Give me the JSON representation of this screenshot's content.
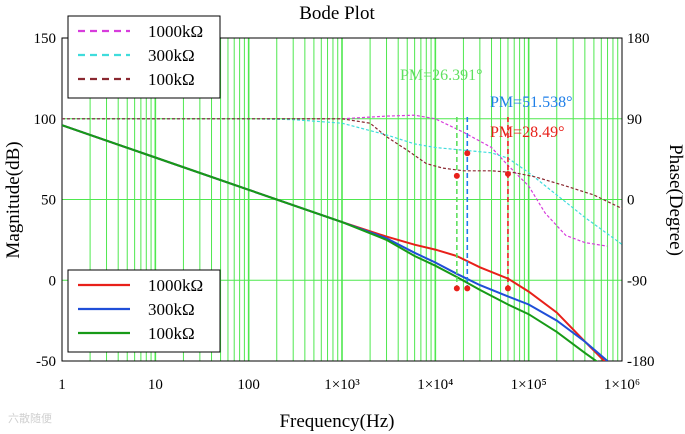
{
  "chart_data": {
    "type": "line",
    "title": "Bode Plot",
    "xlabel": "Frequency(Hz)",
    "ylabel_left": "Magnitude(dB)",
    "ylabel_right": "Phase(Degree)",
    "x_scale": "log",
    "xlim": [
      1,
      1000000
    ],
    "ylim_left": [
      -50,
      150
    ],
    "ylim_right": [
      -180,
      180
    ],
    "x_ticks": [
      {
        "value": 1,
        "label": "1"
      },
      {
        "value": 10,
        "label": "10"
      },
      {
        "value": 100,
        "label": "100"
      },
      {
        "value": 1000,
        "label": "1×10³"
      },
      {
        "value": 10000,
        "label": "1×10⁴"
      },
      {
        "value": 100000,
        "label": "1×10⁵"
      },
      {
        "value": 1000000,
        "label": "1×10⁶"
      }
    ],
    "y_ticks_left": [
      {
        "value": 150,
        "label": "150"
      },
      {
        "value": 100,
        "label": "100"
      },
      {
        "value": 50,
        "label": "50"
      },
      {
        "value": 0,
        "label": "0"
      },
      {
        "value": -50,
        "label": "-50"
      }
    ],
    "y_ticks_right": [
      {
        "value": 180,
        "label": "180"
      },
      {
        "value": 90,
        "label": "90"
      },
      {
        "value": 0,
        "label": "0"
      },
      {
        "value": -90,
        "label": "-90"
      },
      {
        "value": -180,
        "label": "-180"
      }
    ],
    "colors": {
      "grid": "#4fe84f",
      "r1000": "#e8201a",
      "r300": "#1f4ed8",
      "r100": "#179a17",
      "ph1000": "#d73cdc",
      "ph300": "#3fdcdc",
      "ph100": "#8a2830"
    },
    "magnitude_series": [
      {
        "name": "1000kΩ",
        "color": "#e8201a",
        "x": [
          1,
          10,
          100,
          1000,
          3000,
          6000,
          10000,
          17000,
          30000,
          60000,
          100000,
          200000,
          400000,
          700000
        ],
        "y": [
          96,
          76,
          56,
          36,
          27,
          22,
          19,
          15,
          8,
          1,
          -7,
          -20,
          -38,
          -52
        ]
      },
      {
        "name": "300kΩ",
        "color": "#1f4ed8",
        "x": [
          1,
          10,
          100,
          1000,
          3000,
          6000,
          10000,
          17000,
          30000,
          60000,
          100000,
          200000,
          400000,
          700000
        ],
        "y": [
          96,
          76,
          56,
          36,
          26,
          17,
          11,
          4,
          -3,
          -10,
          -15,
          -25,
          -38,
          -50
        ]
      },
      {
        "name": "100kΩ",
        "color": "#179a17",
        "x": [
          1,
          10,
          100,
          1000,
          3000,
          6000,
          10000,
          17000,
          30000,
          60000,
          100000,
          200000,
          400000,
          700000
        ],
        "y": [
          96,
          76,
          56,
          36,
          25,
          15,
          9,
          2,
          -6,
          -15,
          -21,
          -32,
          -45,
          -55
        ]
      }
    ],
    "phase_series": [
      {
        "name": "1000kΩ",
        "color": "#d73cdc",
        "x": [
          1,
          100,
          1000,
          3000,
          6000,
          10000,
          20000,
          40000,
          60000,
          100000,
          150000,
          250000,
          400000,
          700000
        ],
        "y": [
          90,
          90,
          90,
          93,
          94,
          90,
          75,
          58,
          38,
          15,
          -15,
          -40,
          -48,
          -52
        ]
      },
      {
        "name": "300kΩ",
        "color": "#3fdcdc",
        "x": [
          1,
          100,
          300,
          1000,
          3000,
          6000,
          10000,
          20000,
          40000,
          60000,
          100000,
          200000,
          400000,
          1000000
        ],
        "y": [
          90,
          90,
          89,
          85,
          72,
          62,
          58,
          55,
          52,
          46,
          30,
          5,
          -20,
          -50
        ]
      },
      {
        "name": "100kΩ",
        "color": "#8a2830",
        "x": [
          1,
          1000,
          2000,
          3000,
          5000,
          8000,
          12000,
          20000,
          40000,
          70000,
          120000,
          250000,
          500000,
          1000000
        ],
        "y": [
          90,
          90,
          85,
          70,
          55,
          40,
          35,
          32,
          32,
          30,
          25,
          15,
          5,
          -10
        ]
      }
    ],
    "annotations": [
      {
        "text": "PM=26.391°",
        "color": "#5fe05f",
        "freq": 17000,
        "phase_marker": 26.391,
        "mag_marker": -5
      },
      {
        "text": "PM=51.538°",
        "color": "#1f7fe8",
        "freq": 22000,
        "phase_marker": 51.538,
        "mag_marker": -5
      },
      {
        "text": "PM=28.49°",
        "color": "#e8201a",
        "freq": 60000,
        "phase_marker": 28.49,
        "mag_marker": -5
      }
    ],
    "legends": [
      {
        "position": "top-left",
        "entries": [
          {
            "label": "1000kΩ",
            "color": "#d73cdc"
          },
          {
            "label": "300kΩ",
            "color": "#3fdcdc"
          },
          {
            "label": "100kΩ",
            "color": "#8a2830"
          }
        ]
      },
      {
        "position": "bottom-left",
        "entries": [
          {
            "label": "1000kΩ",
            "color": "#e8201a"
          },
          {
            "label": "300kΩ",
            "color": "#1f4ed8"
          },
          {
            "label": "100kΩ",
            "color": "#179a17"
          }
        ]
      }
    ]
  },
  "watermark": "六散随便"
}
